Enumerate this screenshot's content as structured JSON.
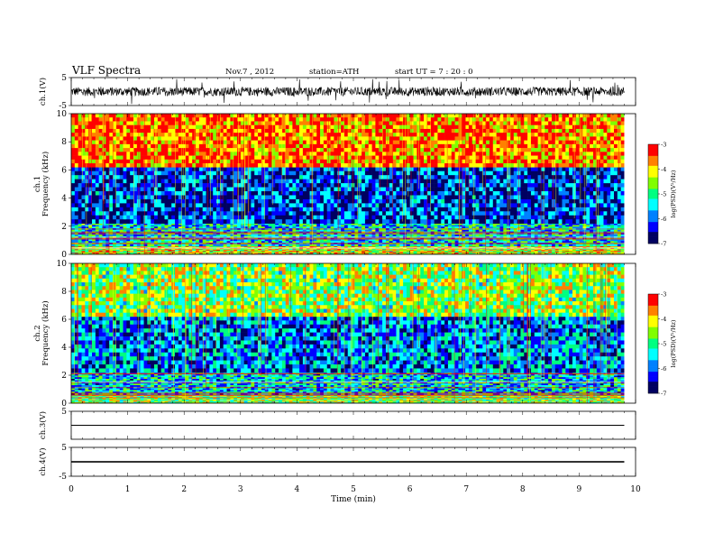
{
  "header": {
    "title": "VLF  Spectra",
    "date": "Nov.7  , 2012",
    "station": "station=ATH",
    "start_ut": "start  UT  =   7  : 20 : 0"
  },
  "chart_data": [
    {
      "type": "line",
      "panel": "ch1-waveform",
      "ylabel": "ch.1(V)",
      "ylim": [
        -5,
        5
      ],
      "y_ticks": [
        "5",
        "-5"
      ],
      "xlim": [
        0,
        10
      ],
      "data_end_min": 9.8,
      "baseline": 0.0,
      "amplitude": 1.6,
      "spikes_peak": 4.5,
      "color": "#000000"
    },
    {
      "type": "heatmap",
      "panel": "ch1-spectrogram",
      "ylabel": "ch.1\nFrequency (kHz)",
      "ylabel_lines": [
        "ch.1",
        "Frequency  (kHz)"
      ],
      "xlim": [
        0,
        10
      ],
      "ylim": [
        0,
        10
      ],
      "y_ticks": [
        "0",
        "2",
        "4",
        "6",
        "8",
        "10"
      ],
      "data_end_min": 9.8,
      "description_bands_kHz": [
        {
          "from": 0,
          "to": 0.6,
          "level": -4.2
        },
        {
          "from": 0.6,
          "to": 2.2,
          "level": -5.4
        },
        {
          "from": 2.2,
          "to": 6.2,
          "level": -6.3
        },
        {
          "from": 6.2,
          "to": 10,
          "level": -3.6
        }
      ],
      "colorbar": {
        "label": "log(PSD)(V²/Hz)",
        "range": [
          -7,
          -3
        ],
        "ticks": [
          "-3",
          "-4",
          "-5",
          "-6",
          "-7"
        ]
      }
    },
    {
      "type": "heatmap",
      "panel": "ch2-spectrogram",
      "ylabel_lines": [
        "ch.2",
        "Frequency  (kHz)"
      ],
      "xlim": [
        0,
        10
      ],
      "ylim": [
        0,
        10
      ],
      "y_ticks": [
        "0",
        "2",
        "4",
        "6",
        "8",
        "10"
      ],
      "data_end_min": 9.8,
      "description_bands_kHz": [
        {
          "from": 0,
          "to": 0.6,
          "level": -4.6
        },
        {
          "from": 0.6,
          "to": 2.2,
          "level": -5.5
        },
        {
          "from": 2.2,
          "to": 6.2,
          "level": -5.9
        },
        {
          "from": 6.2,
          "to": 10,
          "level": -4.6
        }
      ],
      "colorbar": {
        "label": "log(PSD)(V²/Hz)",
        "range": [
          -7,
          -3
        ],
        "ticks": [
          "-3",
          "-4",
          "-5",
          "-6",
          "-7"
        ]
      }
    },
    {
      "type": "line",
      "panel": "ch3-waveform",
      "ylabel": "ch.3(V)",
      "ylim": [
        -5,
        5
      ],
      "y_ticks": [
        "5"
      ],
      "xlim": [
        0,
        10
      ],
      "data_end_min": 9.8,
      "baseline": 0.0,
      "amplitude": 0.1,
      "color": "#000000"
    },
    {
      "type": "line",
      "panel": "ch4-waveform",
      "ylabel": "ch.4(V)",
      "ylim": [
        -5,
        5
      ],
      "y_ticks": [
        "5",
        "-5"
      ],
      "xlim": [
        0,
        10
      ],
      "data_end_min": 9.8,
      "baseline": 0.0,
      "amplitude": 0.25,
      "color": "#000000"
    }
  ],
  "x_axis": {
    "label": "Time  (min)",
    "ticks": [
      "0",
      "1",
      "2",
      "3",
      "4",
      "5",
      "6",
      "7",
      "8",
      "9",
      "10"
    ]
  },
  "colors": {
    "scale": [
      "#000060",
      "#0000ff",
      "#0080ff",
      "#00ffff",
      "#00ff80",
      "#80ff00",
      "#ffff00",
      "#ff8000",
      "#ff0000",
      "#ffffff"
    ]
  }
}
